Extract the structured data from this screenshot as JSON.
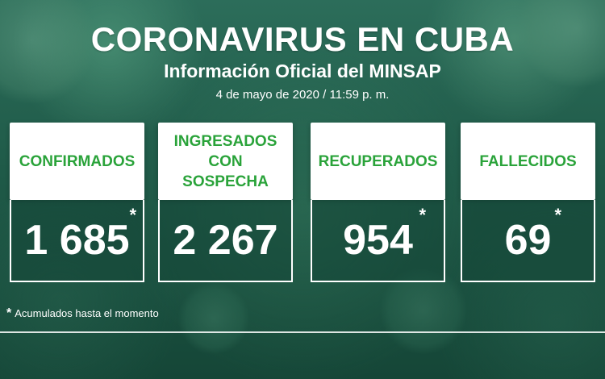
{
  "header": {
    "title": "CORONAVIRUS EN CUBA",
    "subtitle": "Información Oficial del MINSAP",
    "date": "4 de mayo de 2020 / 11:59 p. m."
  },
  "cards": [
    {
      "label": "CONFIRMADOS",
      "value": "1 685",
      "asterisk": "*"
    },
    {
      "label": "INGRESADOS CON SOSPECHA",
      "value": "2 267",
      "asterisk": ""
    },
    {
      "label": "RECUPERADOS",
      "value": "954",
      "asterisk": "*"
    },
    {
      "label": "FALLECIDOS",
      "value": "69",
      "asterisk": "*"
    }
  ],
  "footnote": {
    "star": "*",
    "text": "Acumulados hasta el momento"
  },
  "colors": {
    "label_green": "#2aa33a",
    "background_green": "#1f5a48"
  }
}
